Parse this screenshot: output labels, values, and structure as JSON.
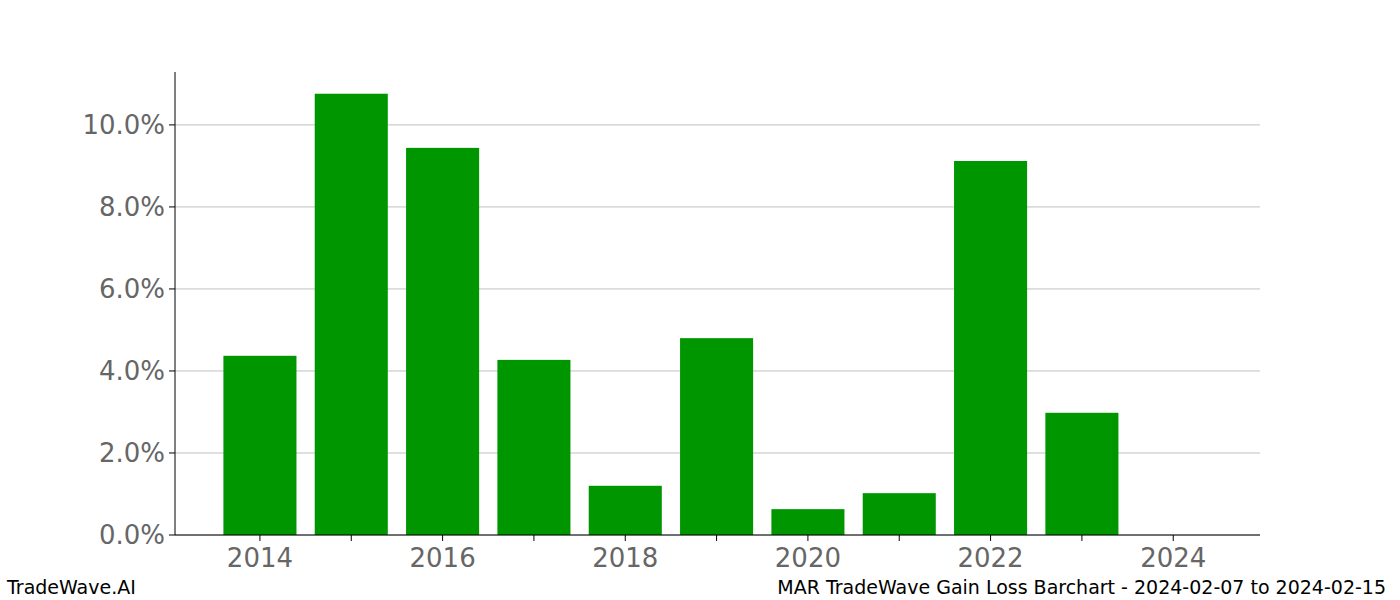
{
  "chart_data": {
    "type": "bar",
    "categories": [
      "2014",
      null,
      "2016",
      null,
      "2018",
      null,
      "2020",
      null,
      "2022",
      null,
      "2024"
    ],
    "values": [
      4.37,
      10.76,
      9.44,
      4.27,
      1.2,
      4.8,
      0.63,
      1.02,
      9.12,
      2.98,
      0
    ],
    "color": "#009600",
    "ylim": [
      0,
      11.29
    ],
    "yticks": [
      {
        "value": 0,
        "label": "0.0%"
      },
      {
        "value": 2,
        "label": "2.0%"
      },
      {
        "value": 4,
        "label": "4.0%"
      },
      {
        "value": 6,
        "label": "6.0%"
      },
      {
        "value": 8,
        "label": "8.0%"
      },
      {
        "value": 10,
        "label": "10.0%"
      }
    ],
    "grid": true,
    "annotations": [
      "TradeWave.AI",
      "MAR TradeWave Gain Loss Barchart - 2024-02-07 to 2024-02-15"
    ]
  }
}
